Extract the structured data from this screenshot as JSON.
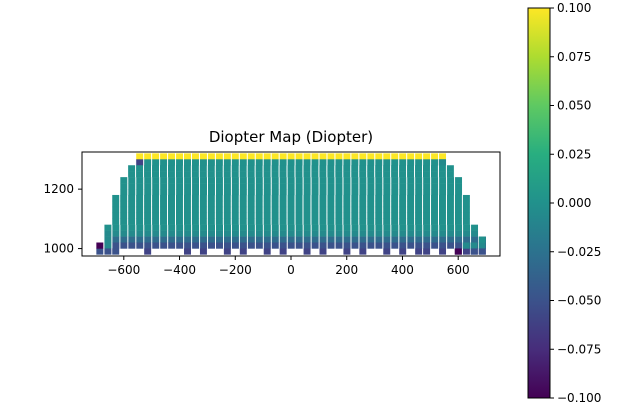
{
  "chart_data": {
    "type": "heatmap",
    "title": "Diopter Map (Diopter)",
    "xlabel": "",
    "ylabel": "",
    "xlim": [
      -750,
      750
    ],
    "ylim": [
      975,
      1325
    ],
    "x_ticks": [
      -600,
      -400,
      -200,
      0,
      200,
      400,
      600
    ],
    "x_tick_labels": [
      "−600",
      "−400",
      "−200",
      "0",
      "200",
      "400",
      "600"
    ],
    "y_ticks": [
      1000,
      1200
    ],
    "y_tick_labels": [
      "1000",
      "1200"
    ],
    "grid": false,
    "cell_size": 25,
    "x_spacing": 28.6,
    "colormap": "viridis",
    "colorbar": {
      "vmin": -0.1,
      "vmax": 0.1,
      "ticks": [
        0.1,
        0.075,
        0.05,
        0.025,
        0,
        -0.025,
        -0.05,
        -0.075,
        -0.1
      ],
      "tick_labels": [
        "0.100",
        "0.075",
        "0.050",
        "0.025",
        "0.000",
        "−0.025",
        "−0.050",
        "−0.075",
        "−0.100"
      ]
    },
    "grid_data": {
      "rows": [
        {
          "y": 1310,
          "x_min": -543,
          "x_max": 543,
          "value": 0.1
        },
        {
          "y": 1290,
          "x_min": -543,
          "x_max": 543,
          "value": 0.0
        },
        {
          "y": 1270,
          "x_min": -572,
          "x_max": 572,
          "value": 0.0
        },
        {
          "y": 1250,
          "x_min": -572,
          "x_max": 572,
          "value": 0.0
        },
        {
          "y": 1230,
          "x_min": -600,
          "x_max": 600,
          "value": 0.0
        },
        {
          "y": 1210,
          "x_min": -600,
          "x_max": 600,
          "value": 0.0
        },
        {
          "y": 1190,
          "x_min": -600,
          "x_max": 600,
          "value": 0.0
        },
        {
          "y": 1170,
          "x_min": -629,
          "x_max": 629,
          "value": 0.0
        },
        {
          "y": 1150,
          "x_min": -629,
          "x_max": 629,
          "value": 0.0
        },
        {
          "y": 1130,
          "x_min": -629,
          "x_max": 629,
          "value": 0.0
        },
        {
          "y": 1110,
          "x_min": -629,
          "x_max": 629,
          "value": 0.0
        },
        {
          "y": 1090,
          "x_min": -629,
          "x_max": 629,
          "value": 0.0
        },
        {
          "y": 1070,
          "x_min": -657,
          "x_max": 657,
          "value": 0.0
        },
        {
          "y": 1050,
          "x_min": -657,
          "x_max": 657,
          "value": -0.006
        },
        {
          "y": 1030,
          "x_min": -657,
          "x_max": 686,
          "value": -0.03
        },
        {
          "y": 1010,
          "x_min": -657,
          "x_max": 686,
          "value": -0.05
        },
        {
          "y": 990,
          "x_min": -686,
          "x_max": 686,
          "value": -0.06
        }
      ],
      "overrides": [
        {
          "x": -543,
          "y": 1290,
          "value": -0.06
        },
        {
          "x": 543,
          "y": 1290,
          "value": -0.006
        },
        {
          "x": -686,
          "y": 1010,
          "value": -0.1
        },
        {
          "x": 600,
          "y": 990,
          "value": -0.1
        },
        {
          "x": -657,
          "y": 1030,
          "value": -0.006
        },
        {
          "x": -657,
          "y": 1010,
          "value": -0.006
        },
        {
          "x": 629,
          "y": 1010,
          "value": -0.006
        },
        {
          "x": 657,
          "y": 1010,
          "value": -0.006
        },
        {
          "x": 686,
          "y": 1010,
          "value": -0.006
        },
        {
          "x": 686,
          "y": 1030,
          "value": 0.0
        },
        {
          "x": -686,
          "y": 990,
          "value": -0.05
        },
        {
          "x": -657,
          "y": 990,
          "value": -0.05
        },
        {
          "x": -629,
          "y": 990,
          "value": -0.05
        },
        {
          "x": 686,
          "y": 990,
          "value": -0.05
        },
        {
          "x": 657,
          "y": 990,
          "value": -0.05
        }
      ],
      "blanks": [
        {
          "x": -600,
          "y": 990
        },
        {
          "x": -572,
          "y": 990
        },
        {
          "x": -543,
          "y": 990
        },
        {
          "x": -515,
          "y": 990
        },
        {
          "x": -486,
          "y": 990
        },
        {
          "x": -457,
          "y": 990
        },
        {
          "x": -429,
          "y": 990
        },
        {
          "x": -400,
          "y": 990
        },
        {
          "x": -372,
          "y": 990
        },
        {
          "x": -343,
          "y": 990
        },
        {
          "x": -315,
          "y": 990
        },
        {
          "x": -286,
          "y": 990
        },
        {
          "x": -257,
          "y": 990
        },
        {
          "x": -229,
          "y": 990
        },
        {
          "x": -200,
          "y": 990
        },
        {
          "x": -172,
          "y": 990
        },
        {
          "x": -143,
          "y": 990
        },
        {
          "x": -114,
          "y": 990
        },
        {
          "x": -86,
          "y": 990
        },
        {
          "x": -57,
          "y": 990
        },
        {
          "x": -29,
          "y": 990
        },
        {
          "x": 0,
          "y": 990
        },
        {
          "x": 29,
          "y": 990
        },
        {
          "x": 57,
          "y": 990
        },
        {
          "x": 86,
          "y": 990
        },
        {
          "x": 114,
          "y": 990
        },
        {
          "x": 143,
          "y": 990
        },
        {
          "x": 172,
          "y": 990
        },
        {
          "x": 200,
          "y": 990
        },
        {
          "x": 229,
          "y": 990
        },
        {
          "x": 257,
          "y": 990
        },
        {
          "x": 286,
          "y": 990
        },
        {
          "x": 315,
          "y": 990
        },
        {
          "x": 343,
          "y": 990
        },
        {
          "x": 372,
          "y": 990
        },
        {
          "x": 400,
          "y": 990
        },
        {
          "x": 429,
          "y": 990
        },
        {
          "x": 457,
          "y": 990
        },
        {
          "x": 486,
          "y": 990
        },
        {
          "x": 515,
          "y": 990
        },
        {
          "x": 543,
          "y": 990
        },
        {
          "x": 572,
          "y": 990
        }
      ]
    }
  }
}
